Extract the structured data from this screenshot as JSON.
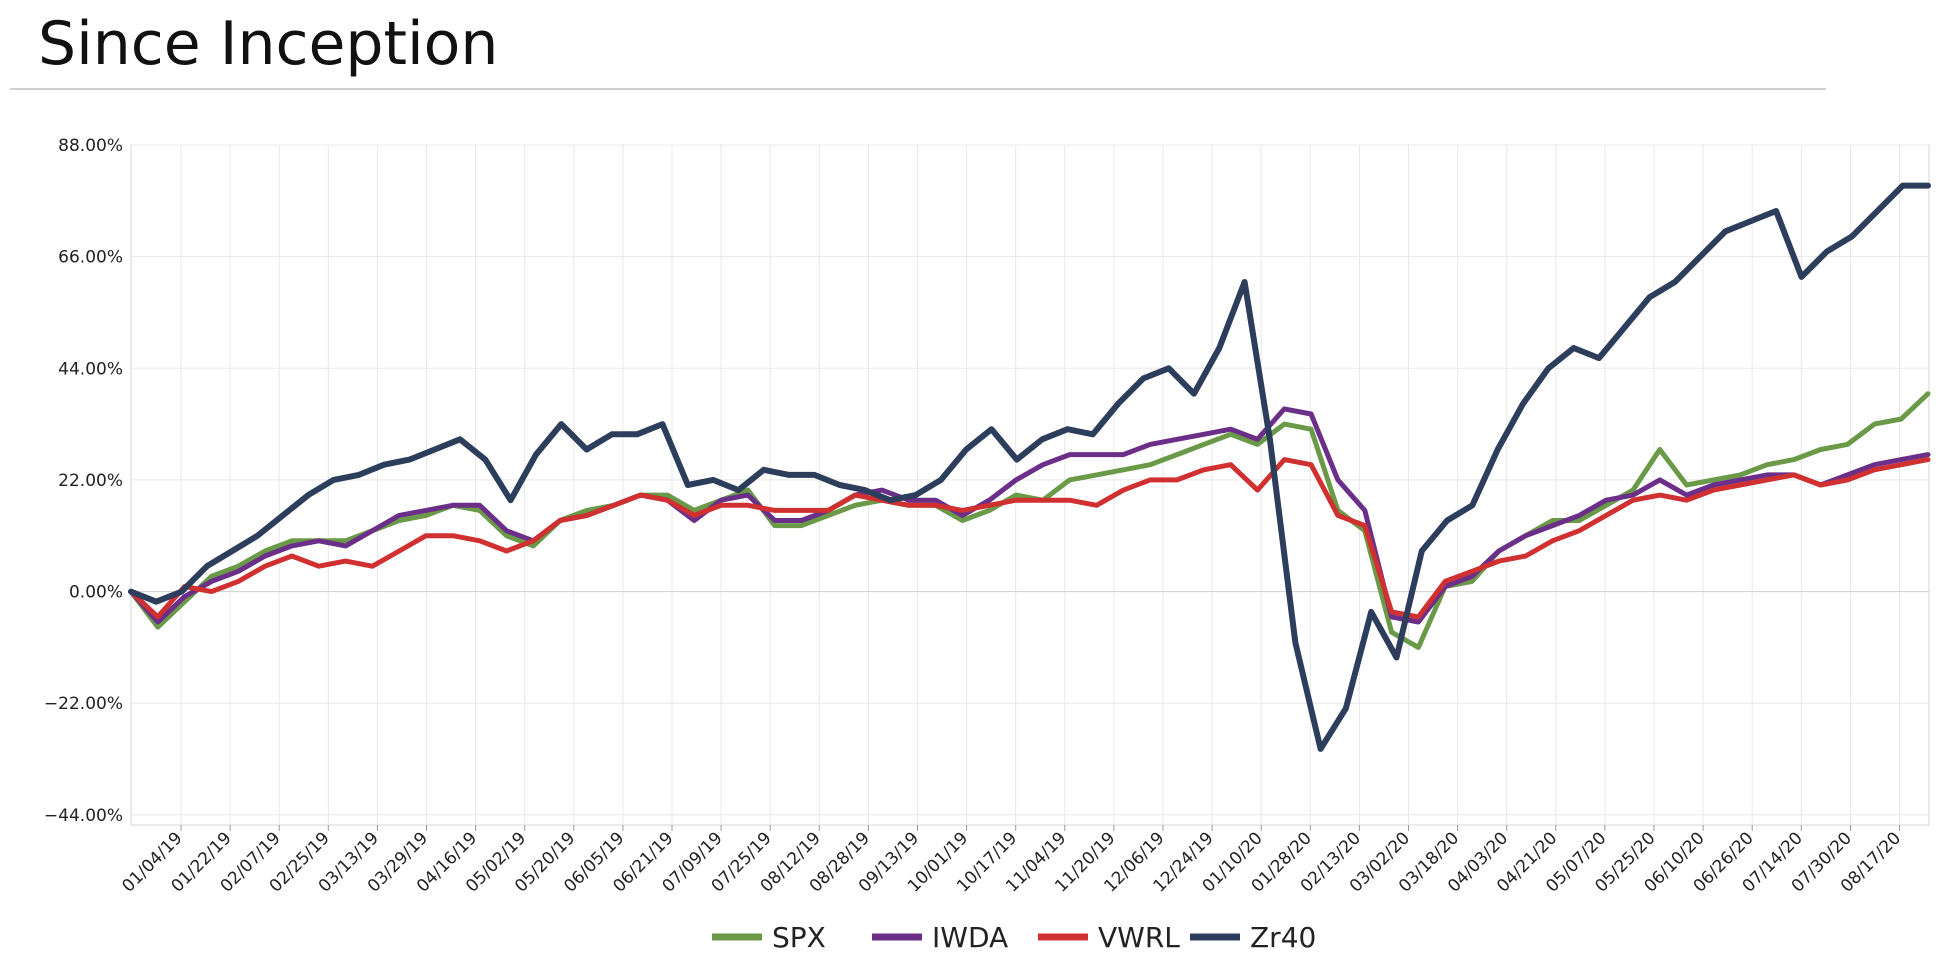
{
  "page": {
    "title": "Since Inception"
  },
  "chart_data": {
    "type": "line",
    "title": "Since Inception",
    "xlabel": "",
    "ylabel": "",
    "ylim": [
      -46,
      88
    ],
    "y_ticks": [
      "88.00%",
      "66.00%",
      "44.00%",
      "22.00%",
      "0.00%",
      "−22.00%",
      "−44.00%"
    ],
    "y_tick_values": [
      88,
      66,
      44,
      22,
      0,
      -22,
      -44
    ],
    "x_ticks": [
      "01/04/19",
      "01/22/19",
      "02/07/19",
      "02/25/19",
      "03/13/19",
      "03/29/19",
      "04/16/19",
      "05/02/19",
      "05/20/19",
      "06/05/19",
      "06/21/19",
      "07/09/19",
      "07/25/19",
      "08/12/19",
      "08/28/19",
      "09/13/19",
      "10/01/19",
      "10/17/19",
      "11/04/19",
      "11/20/19",
      "12/06/19",
      "12/24/19",
      "01/10/20",
      "01/28/20",
      "02/13/20",
      "03/02/20",
      "03/18/20",
      "04/03/20",
      "04/21/20",
      "05/07/20",
      "05/25/20",
      "06/10/20",
      "06/26/20",
      "07/14/20",
      "07/30/20",
      "08/17/20"
    ],
    "grid": true,
    "legend_position": "bottom",
    "series": [
      {
        "name": "SPX",
        "color": "#6a9a48",
        "values": [
          0,
          -7,
          -2,
          3,
          5,
          8,
          10,
          10,
          10,
          12,
          14,
          15,
          17,
          16,
          11,
          9,
          14,
          16,
          17,
          19,
          19,
          16,
          18,
          20,
          13,
          13,
          15,
          17,
          18,
          17,
          17,
          14,
          16,
          19,
          18,
          22,
          23,
          24,
          25,
          27,
          29,
          31,
          29,
          33,
          32,
          16,
          12,
          -8,
          -11,
          1,
          2,
          8,
          11,
          14,
          14,
          17,
          20,
          28,
          21,
          22,
          23,
          25,
          26,
          28,
          29,
          33,
          34,
          39
        ]
      },
      {
        "name": "IWDA",
        "color": "#6b2f8a",
        "values": [
          0,
          -6,
          -1,
          2,
          4,
          7,
          9,
          10,
          9,
          12,
          15,
          16,
          17,
          17,
          12,
          10,
          14,
          15,
          17,
          19,
          18,
          14,
          18,
          19,
          14,
          14,
          16,
          19,
          20,
          18,
          18,
          15,
          18,
          22,
          25,
          27,
          27,
          27,
          29,
          30,
          31,
          32,
          30,
          36,
          35,
          22,
          16,
          -5,
          -6,
          1,
          3,
          8,
          11,
          13,
          15,
          18,
          19,
          22,
          19,
          21,
          22,
          23,
          23,
          21,
          23,
          25,
          26,
          27
        ]
      },
      {
        "name": "VWRL",
        "color": "#d03030",
        "values": [
          0,
          -5,
          1,
          0,
          2,
          5,
          7,
          5,
          6,
          5,
          8,
          11,
          11,
          10,
          8,
          10,
          14,
          15,
          17,
          19,
          18,
          15,
          17,
          17,
          16,
          16,
          16,
          19,
          18,
          17,
          17,
          16,
          17,
          18,
          18,
          18,
          17,
          20,
          22,
          22,
          24,
          25,
          20,
          26,
          25,
          15,
          13,
          -4,
          -5,
          2,
          4,
          6,
          7,
          10,
          12,
          15,
          18,
          19,
          18,
          20,
          21,
          22,
          23,
          21,
          22,
          24,
          25,
          26
        ]
      },
      {
        "name": "Zr40",
        "color": "#2d3e5c",
        "values": [
          0,
          -2,
          0,
          5,
          8,
          11,
          15,
          19,
          22,
          23,
          25,
          26,
          28,
          30,
          26,
          18,
          27,
          33,
          28,
          31,
          31,
          33,
          21,
          22,
          20,
          24,
          23,
          23,
          21,
          20,
          18,
          19,
          22,
          28,
          32,
          26,
          30,
          32,
          31,
          37,
          42,
          44,
          39,
          48,
          61,
          30,
          -10,
          -31,
          -23,
          -4,
          -13,
          8,
          14,
          17,
          28,
          37,
          44,
          48,
          46,
          52,
          58,
          61,
          66,
          71,
          73,
          75,
          62,
          67,
          70,
          75,
          80,
          80
        ]
      }
    ]
  }
}
